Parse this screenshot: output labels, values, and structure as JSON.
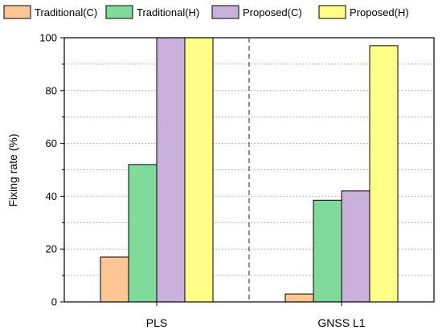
{
  "chart_data": {
    "type": "bar",
    "categories": [
      "PLS",
      "GNSS L1"
    ],
    "series": [
      {
        "name": "Traditional(C)",
        "values": [
          17,
          3
        ],
        "color": "#FDC692"
      },
      {
        "name": "Traditional(H)",
        "values": [
          52,
          38.5
        ],
        "color": "#7FDA9B"
      },
      {
        "name": "Proposed(C)",
        "values": [
          100,
          42
        ],
        "color": "#C9B1DB"
      },
      {
        "name": "Proposed(H)",
        "values": [
          100,
          97
        ],
        "color": "#FFFF88"
      }
    ],
    "title": "",
    "xlabel": "",
    "ylabel": "Fixing rate (%)",
    "ylim": [
      0,
      100
    ],
    "yticks": [
      0,
      20,
      40,
      60,
      80,
      100
    ],
    "grid": "horizontal dotted",
    "category_separator": "dashed",
    "legend": "top"
  }
}
